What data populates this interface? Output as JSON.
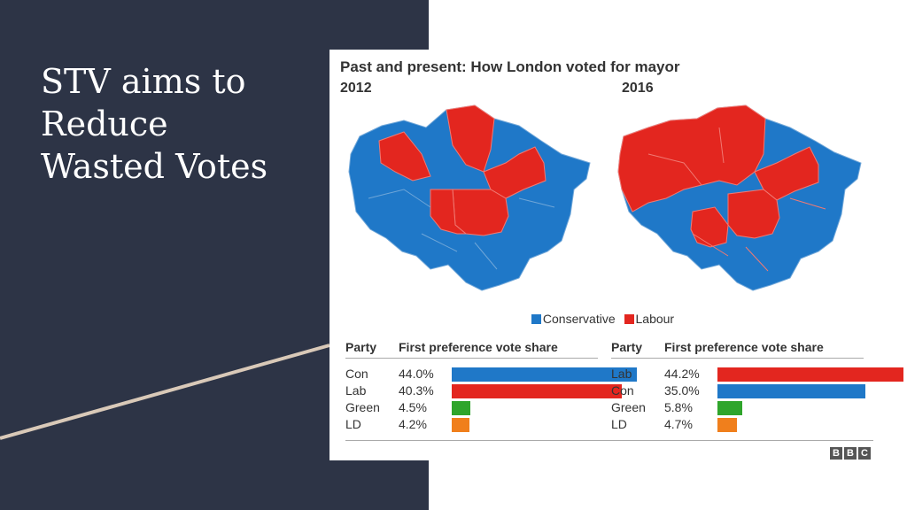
{
  "slide": {
    "title_lines": [
      "STV aims to",
      "Reduce",
      "Wasted Votes"
    ],
    "background": "#2d3446",
    "accent_line_color": "#d9c9b8"
  },
  "figure": {
    "title": "Past and present: How London voted for mayor",
    "years": [
      "2012",
      "2016"
    ],
    "legend": [
      "Conservative",
      "Labour"
    ],
    "colors": {
      "Con": "#1f78c8",
      "Lab": "#e3261f",
      "Green": "#2fa52b",
      "LD": "#f07f1c"
    },
    "source_logo": [
      "B",
      "B",
      "C"
    ]
  },
  "chart_data": [
    {
      "type": "bar",
      "year": "2012",
      "column_headers": [
        "Party",
        "First preference vote share"
      ],
      "categories": [
        "Con",
        "Lab",
        "Green",
        "LD"
      ],
      "values": [
        44.0,
        40.3,
        4.5,
        4.2
      ],
      "value_labels": [
        "44.0%",
        "40.3%",
        "4.5%",
        "4.2%"
      ],
      "ylim": [
        0,
        50
      ]
    },
    {
      "type": "bar",
      "year": "2016",
      "column_headers": [
        "Party",
        "First preference vote share"
      ],
      "categories": [
        "Lab",
        "Con",
        "Green",
        "LD"
      ],
      "values": [
        44.2,
        35.0,
        5.8,
        4.7
      ],
      "value_labels": [
        "44.2%",
        "35.0%",
        "5.8%",
        "4.7%"
      ],
      "ylim": [
        0,
        50
      ]
    }
  ]
}
